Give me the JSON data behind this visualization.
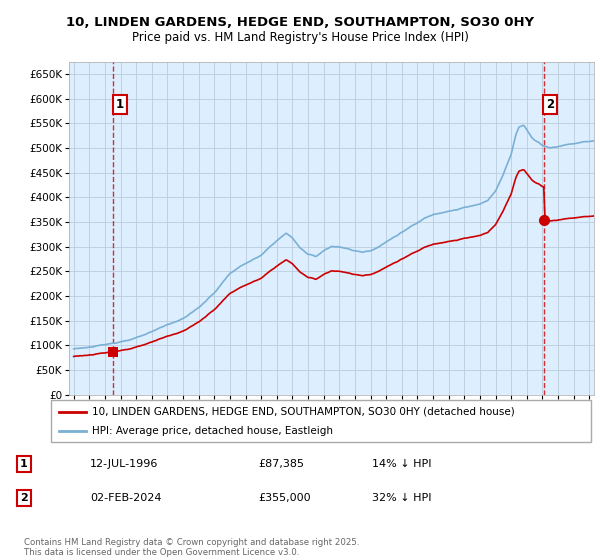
{
  "title_line1": "10, LINDEN GARDENS, HEDGE END, SOUTHAMPTON, SO30 0HY",
  "title_line2": "Price paid vs. HM Land Registry's House Price Index (HPI)",
  "ylabel_ticks": [
    "£0",
    "£50K",
    "£100K",
    "£150K",
    "£200K",
    "£250K",
    "£300K",
    "£350K",
    "£400K",
    "£450K",
    "£500K",
    "£550K",
    "£600K",
    "£650K"
  ],
  "ytick_values": [
    0,
    50000,
    100000,
    150000,
    200000,
    250000,
    300000,
    350000,
    400000,
    450000,
    500000,
    550000,
    600000,
    650000
  ],
  "ylim": [
    0,
    675000
  ],
  "xlim_start": 1993.7,
  "xlim_end": 2027.3,
  "sale1_x": 1996.53,
  "sale1_y": 87385,
  "sale1_label": "1",
  "sale2_x": 2024.09,
  "sale2_y": 355000,
  "sale2_label": "2",
  "property_color": "#cc0000",
  "hpi_color": "#7ab0d4",
  "bg_color": "#ddeeff",
  "grid_color": "#bbccdd",
  "legend_label1": "10, LINDEN GARDENS, HEDGE END, SOUTHAMPTON, SO30 0HY (detached house)",
  "legend_label2": "HPI: Average price, detached house, Eastleigh",
  "annotation1_date": "12-JUL-1996",
  "annotation1_price": "£87,385",
  "annotation1_hpi": "14% ↓ HPI",
  "annotation2_date": "02-FEB-2024",
  "annotation2_price": "£355,000",
  "annotation2_hpi": "32% ↓ HPI",
  "footnote": "Contains HM Land Registry data © Crown copyright and database right 2025.\nThis data is licensed under the Open Government Licence v3.0."
}
